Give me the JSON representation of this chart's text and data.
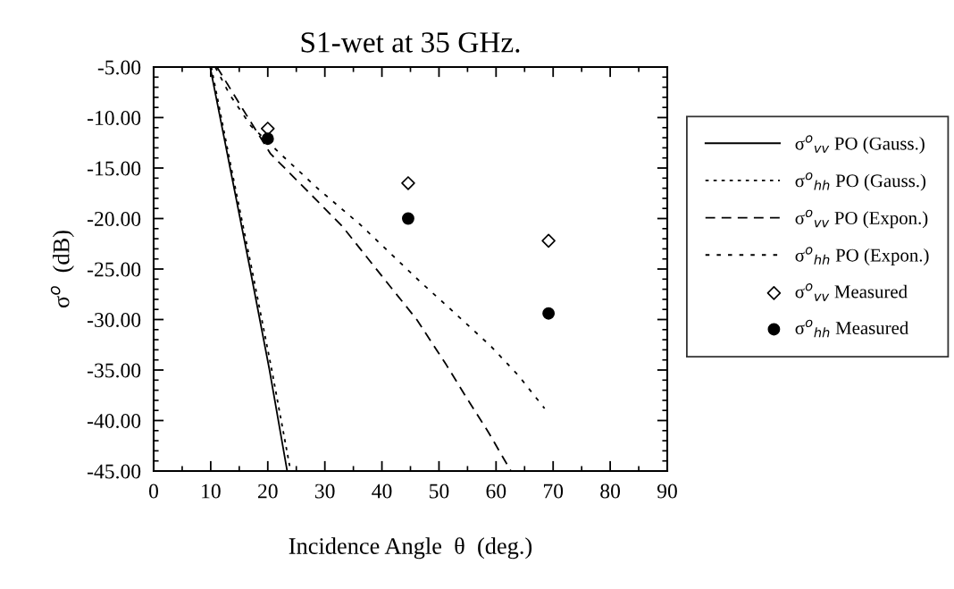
{
  "chart_data": {
    "type": "line",
    "title": "S1-wet at 35 GHz.",
    "xlabel": "Incidence Angle  θ  (deg.)",
    "ylabel": "σ$^{o}$  (dB)",
    "xlim": [
      0,
      90
    ],
    "xticks": [
      0,
      10,
      20,
      30,
      40,
      50,
      60,
      70,
      80,
      90
    ],
    "ylim": [
      -45,
      -5
    ],
    "yticks": [
      {
        "value": -45,
        "label": "-45.00"
      },
      {
        "value": -40,
        "label": "-40.00"
      },
      {
        "value": -35,
        "label": "-35.00"
      },
      {
        "value": -30,
        "label": "-30.00"
      },
      {
        "value": -25,
        "label": "-25.00"
      },
      {
        "value": -20,
        "label": "-20.00"
      },
      {
        "value": -15,
        "label": "-15.00"
      },
      {
        "value": -10,
        "label": "-10.00"
      },
      {
        "value": -5,
        "label": "-5.00"
      }
    ],
    "grid": false,
    "legend": "right",
    "series": [
      {
        "name": "σ$^{o}$$_{vv}$ PO (Gauss.)",
        "color": "#000000",
        "line_style": "solid",
        "marker": "none",
        "x": [
          9.9,
          13.4,
          16.9,
          20.3,
          23.4
        ],
        "values": [
          -5,
          -15,
          -25,
          -35,
          -45
        ]
      },
      {
        "name": "σ$^{o}$$_{hh}$ PO (Gauss.)",
        "color": "#000000",
        "line_style": "dotted",
        "marker": "none",
        "x": [
          10.1,
          13.6,
          17.2,
          20.7,
          24.0
        ],
        "values": [
          -5,
          -15,
          -25,
          -35,
          -45
        ]
      },
      {
        "name": "σ$^{o}$$_{vv}$ PO (Expon.)",
        "color": "#000000",
        "line_style": "dashed",
        "marker": "none",
        "x": [
          11.1,
          15,
          20.5,
          27,
          33.1,
          40,
          46.1,
          51.3,
          55,
          58.6,
          62.6
        ],
        "values": [
          -5,
          -8.6,
          -13.6,
          -17.3,
          -20.8,
          -25.7,
          -30,
          -34.5,
          -37.9,
          -41.1,
          -45
        ]
      },
      {
        "name": "σ$^{o}$$_{hh}$ PO (Expon.)",
        "color": "#000000",
        "line_style": "dotted",
        "marker": "none",
        "x": [
          10.8,
          13.3,
          17,
          22.6,
          28.9,
          36.2,
          46.6,
          51.3,
          59.2,
          64,
          68.5
        ],
        "values": [
          -5,
          -7.7,
          -10.8,
          -13.8,
          -17.1,
          -20.6,
          -26.2,
          -28.6,
          -32.7,
          -35.6,
          -38.8
        ]
      },
      {
        "name": "σ$^{o}$$_{vv}$ Measured",
        "type": "scatter",
        "color": "#000000",
        "marker": "diamond",
        "x": [
          20,
          44.6,
          69.2
        ],
        "values": [
          -11.1,
          -16.5,
          -22.2
        ]
      },
      {
        "name": "σ$^{o}$$_{hh}$ Measured",
        "type": "scatter",
        "color": "#000000",
        "marker": "circle",
        "x": [
          20,
          44.6,
          69.2
        ],
        "values": [
          -12.1,
          -20,
          -29.4
        ]
      }
    ]
  }
}
